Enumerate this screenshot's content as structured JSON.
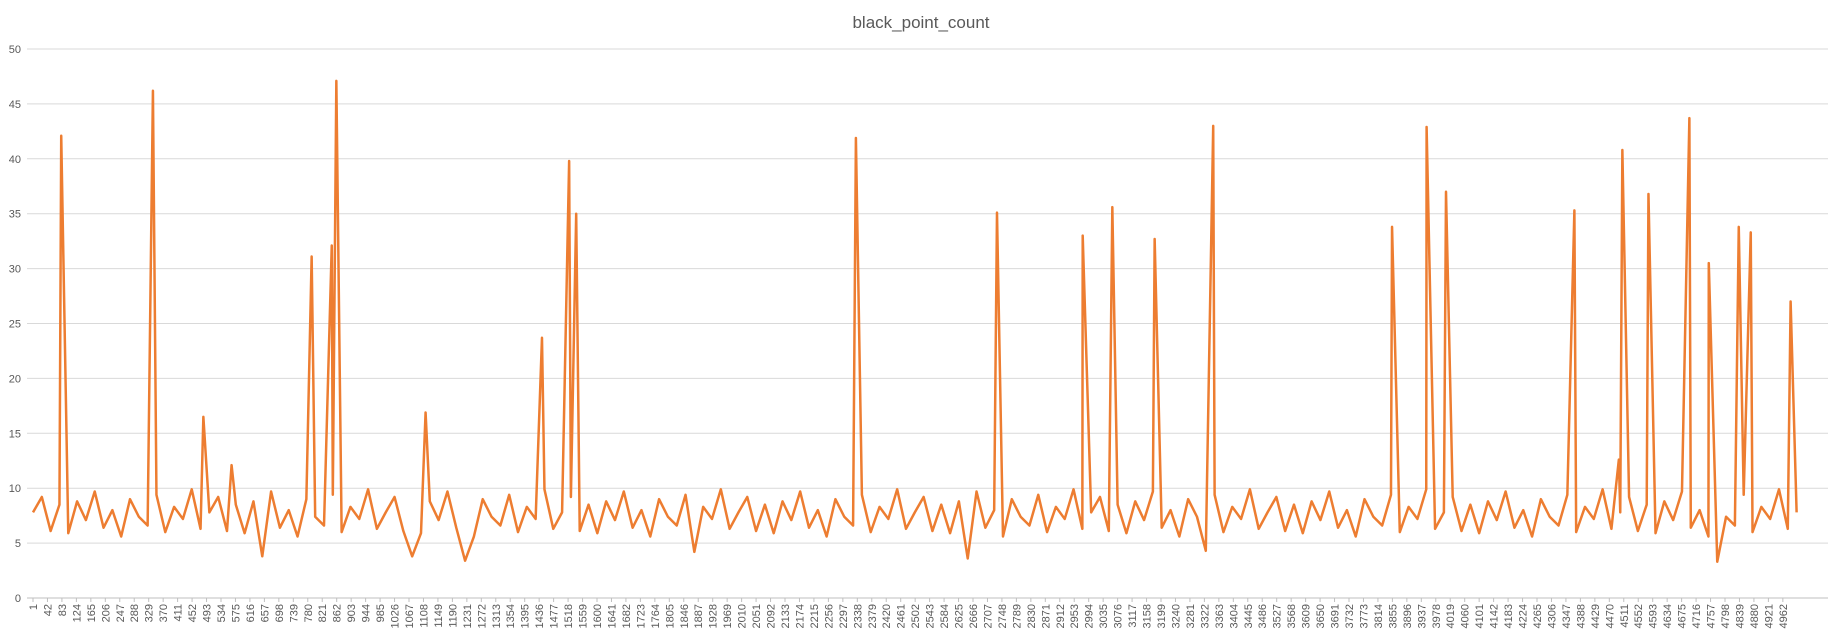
{
  "chart_data": {
    "type": "line",
    "title": "black_point_count",
    "color": "#ed7d31",
    "grid": true,
    "x": [
      1,
      26,
      51,
      76,
      81,
      101,
      126,
      151,
      176,
      201,
      226,
      251,
      276,
      301,
      326,
      341,
      351,
      376,
      401,
      426,
      451,
      476,
      484,
      501,
      526,
      551,
      564,
      576,
      601,
      626,
      651,
      676,
      701,
      726,
      751,
      776,
      791,
      801,
      826,
      848,
      851,
      861,
      876,
      901,
      926,
      951,
      976,
      1001,
      1026,
      1051,
      1076,
      1101,
      1114,
      1126,
      1151,
      1176,
      1201,
      1226,
      1251,
      1276,
      1301,
      1326,
      1351,
      1376,
      1401,
      1426,
      1444,
      1451,
      1476,
      1501,
      1521,
      1526,
      1541,
      1551,
      1576,
      1601,
      1626,
      1651,
      1676,
      1701,
      1726,
      1751,
      1776,
      1801,
      1826,
      1851,
      1876,
      1901,
      1926,
      1951,
      1976,
      2001,
      2026,
      2051,
      2076,
      2101,
      2126,
      2151,
      2176,
      2201,
      2226,
      2251,
      2276,
      2301,
      2326,
      2334,
      2351,
      2376,
      2401,
      2426,
      2451,
      2476,
      2501,
      2526,
      2551,
      2576,
      2601,
      2626,
      2651,
      2676,
      2701,
      2726,
      2734,
      2751,
      2776,
      2801,
      2826,
      2851,
      2876,
      2901,
      2926,
      2951,
      2976,
      2977,
      3001,
      3026,
      3051,
      3061,
      3076,
      3101,
      3126,
      3151,
      3176,
      3181,
      3201,
      3226,
      3251,
      3276,
      3301,
      3326,
      3347,
      3351,
      3376,
      3401,
      3426,
      3451,
      3476,
      3501,
      3526,
      3551,
      3576,
      3601,
      3626,
      3651,
      3676,
      3701,
      3726,
      3751,
      3776,
      3801,
      3826,
      3851,
      3854,
      3876,
      3901,
      3926,
      3951,
      3952,
      3976,
      4001,
      4007,
      4026,
      4051,
      4076,
      4101,
      4126,
      4151,
      4176,
      4201,
      4226,
      4251,
      4276,
      4301,
      4326,
      4351,
      4371,
      4376,
      4401,
      4426,
      4451,
      4476,
      4497,
      4501,
      4507,
      4526,
      4551,
      4576,
      4581,
      4601,
      4626,
      4651,
      4676,
      4697,
      4701,
      4726,
      4751,
      4752,
      4776,
      4801,
      4826,
      4837,
      4851,
      4871,
      4876,
      4901,
      4926,
      4951,
      4976,
      4984,
      5001
    ],
    "values": [
      7.8,
      9.2,
      6.1,
      8.5,
      42.1,
      5.9,
      8.8,
      7.1,
      9.7,
      6.4,
      8.0,
      5.6,
      9.0,
      7.4,
      6.6,
      46.2,
      9.4,
      6.0,
      8.3,
      7.2,
      9.9,
      6.3,
      16.5,
      7.8,
      9.2,
      6.1,
      12.1,
      8.5,
      5.9,
      8.8,
      3.8,
      9.7,
      6.4,
      8.0,
      5.6,
      9.0,
      31.1,
      7.4,
      6.6,
      32.1,
      9.4,
      47.1,
      6.0,
      8.3,
      7.2,
      9.9,
      6.3,
      7.8,
      9.2,
      6.1,
      3.8,
      5.9,
      16.9,
      8.8,
      7.1,
      9.7,
      6.4,
      3.4,
      5.6,
      9.0,
      7.4,
      6.6,
      9.4,
      6.0,
      8.3,
      7.2,
      23.7,
      9.9,
      6.3,
      7.8,
      39.8,
      9.2,
      35.0,
      6.1,
      8.5,
      5.9,
      8.8,
      7.1,
      9.7,
      6.4,
      8.0,
      5.6,
      9.0,
      7.4,
      6.6,
      9.4,
      4.2,
      8.3,
      7.2,
      9.9,
      6.3,
      7.8,
      9.2,
      6.1,
      8.5,
      5.9,
      8.8,
      7.1,
      9.7,
      6.4,
      8.0,
      5.6,
      9.0,
      7.4,
      6.6,
      41.9,
      9.4,
      6.0,
      8.3,
      7.2,
      9.9,
      6.3,
      7.8,
      9.2,
      6.1,
      8.5,
      5.9,
      8.8,
      3.6,
      9.7,
      6.4,
      8.0,
      35.1,
      5.6,
      9.0,
      7.4,
      6.6,
      9.4,
      6.0,
      8.3,
      7.2,
      9.9,
      6.3,
      33.0,
      7.8,
      9.2,
      6.1,
      35.6,
      8.5,
      5.9,
      8.8,
      7.1,
      9.7,
      32.7,
      6.4,
      8.0,
      5.6,
      9.0,
      7.4,
      4.3,
      43.0,
      9.4,
      6.0,
      8.3,
      7.2,
      9.9,
      6.3,
      7.8,
      9.2,
      6.1,
      8.5,
      5.9,
      8.8,
      7.1,
      9.7,
      6.4,
      8.0,
      5.6,
      9.0,
      7.4,
      6.6,
      9.4,
      33.8,
      6.0,
      8.3,
      7.2,
      9.9,
      42.9,
      6.3,
      7.8,
      37.0,
      9.2,
      6.1,
      8.5,
      5.9,
      8.8,
      7.1,
      9.7,
      6.4,
      8.0,
      5.6,
      9.0,
      7.4,
      6.6,
      9.4,
      35.3,
      6.0,
      8.3,
      7.2,
      9.9,
      6.3,
      12.6,
      7.8,
      40.8,
      9.2,
      6.1,
      8.5,
      36.8,
      5.9,
      8.8,
      7.1,
      9.7,
      43.7,
      6.4,
      8.0,
      5.6,
      30.5,
      3.3,
      7.4,
      6.6,
      33.8,
      9.4,
      33.3,
      6.0,
      8.3,
      7.2,
      9.9,
      6.3,
      27.0,
      7.8
    ],
    "xlim": [
      1,
      5090
    ],
    "xticks": [
      1,
      42,
      83,
      124,
      165,
      206,
      247,
      288,
      329,
      370,
      411,
      452,
      493,
      534,
      575,
      616,
      657,
      698,
      739,
      780,
      821,
      862,
      903,
      944,
      985,
      1026,
      1067,
      1108,
      1149,
      1190,
      1231,
      1272,
      1313,
      1354,
      1395,
      1436,
      1477,
      1518,
      1559,
      1600,
      1641,
      1682,
      1723,
      1764,
      1805,
      1846,
      1887,
      1928,
      1969,
      2010,
      2051,
      2092,
      2133,
      2174,
      2215,
      2256,
      2297,
      2338,
      2379,
      2420,
      2461,
      2502,
      2543,
      2584,
      2625,
      2666,
      2707,
      2748,
      2789,
      2830,
      2871,
      2912,
      2953,
      2994,
      3035,
      3076,
      3117,
      3158,
      3199,
      3240,
      3281,
      3322,
      3363,
      3404,
      3445,
      3486,
      3527,
      3568,
      3609,
      3650,
      3691,
      3732,
      3773,
      3814,
      3855,
      3896,
      3937,
      3978,
      4019,
      4060,
      4101,
      4142,
      4183,
      4224,
      4265,
      4306,
      4347,
      4388,
      4429,
      4470,
      4511,
      4552,
      4593,
      4634,
      4675,
      4716,
      4757,
      4798,
      4839,
      4880,
      4921,
      4962
    ],
    "ylim": [
      0,
      50
    ],
    "yticks": [
      0,
      5,
      10,
      15,
      20,
      25,
      30,
      35,
      40,
      45,
      50
    ]
  }
}
